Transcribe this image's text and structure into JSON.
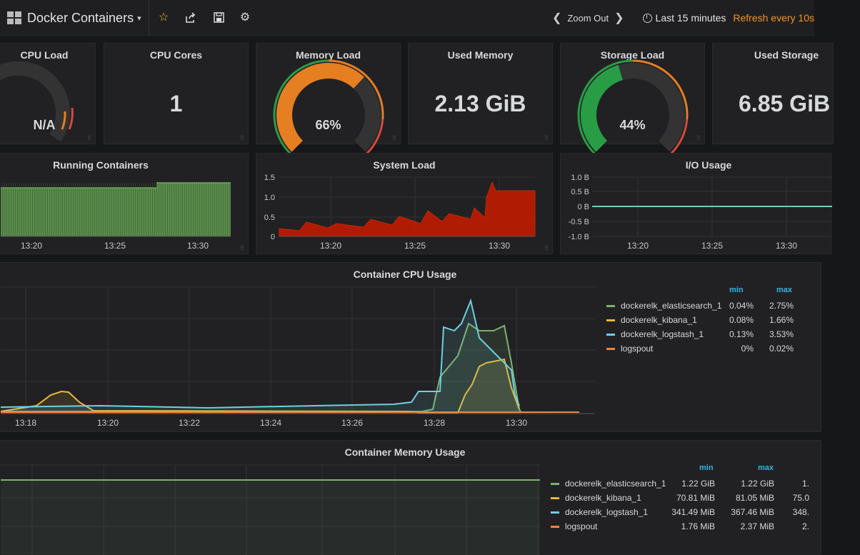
{
  "topbar": {
    "title": "Docker Containers",
    "zoom_label": "Zoom Out",
    "time_range": "Last 15 minutes",
    "refresh": "Refresh every 10s",
    "icons": [
      "star-icon",
      "share-icon",
      "save-icon",
      "gear-icon"
    ]
  },
  "stats": {
    "cpu_load": {
      "title": "CPU Load",
      "value": "N/A"
    },
    "cpu_cores": {
      "title": "CPU Cores",
      "value": "1"
    },
    "memory_load": {
      "title": "Memory Load",
      "value": "66%",
      "percent": 66
    },
    "used_memory": {
      "title": "Used Memory",
      "value": "2.13 GiB"
    },
    "storage_load": {
      "title": "Storage Load",
      "value": "44%",
      "percent": 44
    },
    "used_storage": {
      "title": "Used Storage",
      "value": "6.85 GiB"
    }
  },
  "colors": {
    "green": "#7eb26d",
    "yellow": "#eab839",
    "cyan": "#6ed0e0",
    "orange": "#ef843c",
    "gauge_orange": "#e67e22",
    "gauge_green": "#299c46",
    "red_fill": "#bf1b00",
    "io_line": "#7ec8b8"
  },
  "running_containers": {
    "title": "Running Containers",
    "x_ticks": [
      "13:20",
      "13:25",
      "13:30"
    ]
  },
  "system_load": {
    "title": "System Load",
    "y_ticks": [
      "1.5",
      "1.0",
      "0.5",
      "0"
    ],
    "x_ticks": [
      "13:20",
      "13:25",
      "13:30"
    ]
  },
  "io_usage": {
    "title": "I/O Usage",
    "y_ticks": [
      "1.0 B",
      "0.5 B",
      "0 B",
      "-0.5 B",
      "-1.0 B"
    ],
    "x_ticks": [
      "13:20",
      "13:25",
      "13:30"
    ]
  },
  "cpu_usage": {
    "title": "Container CPU Usage",
    "x_ticks": [
      "13:18",
      "13:20",
      "13:22",
      "13:24",
      "13:26",
      "13:28",
      "13:30"
    ],
    "legend_headers": {
      "min": "min",
      "max": "max"
    },
    "legend": [
      {
        "name": "dockerelk_elasticsearch_1",
        "min": "0.04%",
        "max": "2.75%",
        "color": "#7eb26d"
      },
      {
        "name": "dockerelk_kibana_1",
        "min": "0.08%",
        "max": "1.66%",
        "color": "#eab839"
      },
      {
        "name": "dockerelk_logstash_1",
        "min": "0.13%",
        "max": "3.53%",
        "color": "#6ed0e0"
      },
      {
        "name": "logspout",
        "min": "0%",
        "max": "0.02%",
        "color": "#ef843c"
      }
    ]
  },
  "memory_usage": {
    "title": "Container Memory Usage",
    "legend_headers": {
      "min": "min",
      "max": "max"
    },
    "legend": [
      {
        "name": "dockerelk_elasticsearch_1",
        "min": "1.22 GiB",
        "max": "1.22 GiB",
        "avg": "1.",
        "color": "#7eb26d"
      },
      {
        "name": "dockerelk_kibana_1",
        "min": "70.81 MiB",
        "max": "81.05 MiB",
        "avg": "75.0",
        "color": "#eab839"
      },
      {
        "name": "dockerelk_logstash_1",
        "min": "341.49 MiB",
        "max": "367.46 MiB",
        "avg": "348.",
        "color": "#6ed0e0"
      },
      {
        "name": "logspout",
        "min": "1.76 MiB",
        "max": "2.37 MiB",
        "avg": "2.",
        "color": "#ef843c"
      }
    ]
  }
}
